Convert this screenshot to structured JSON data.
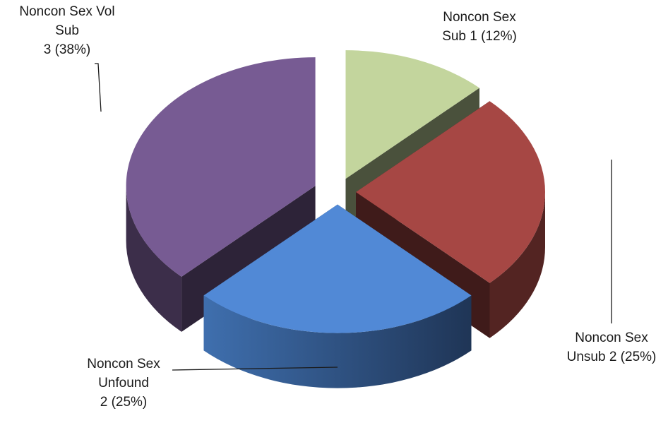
{
  "chart_data": {
    "type": "pie",
    "title": "",
    "style": "3d-exploded",
    "slices": [
      {
        "name": "Noncon Sex Sub",
        "value": 1,
        "percent": 12,
        "color": "#c3d59d",
        "label_lines": [
          "Noncon Sex",
          "Sub 1 (12%)"
        ]
      },
      {
        "name": "Noncon Sex Unsub",
        "value": 2,
        "percent": 25,
        "color": "#a64744",
        "label_lines": [
          "Noncon Sex",
          "Unsub 2 (25%)"
        ]
      },
      {
        "name": "Noncon Sex Unfound",
        "value": 2,
        "percent": 25,
        "color": "#5189d6",
        "label_lines": [
          "Noncon Sex",
          "Unfound",
          "2 (25%)"
        ]
      },
      {
        "name": "Noncon Sex Vol Sub",
        "value": 3,
        "percent": 38,
        "color": "#775b93",
        "label_lines": [
          "Noncon Sex Vol",
          "Sub",
          "3 (38%)"
        ]
      }
    ]
  }
}
